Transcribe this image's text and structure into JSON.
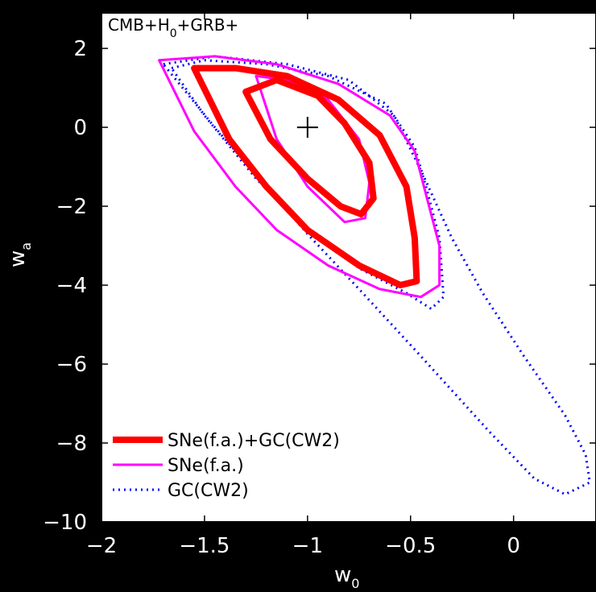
{
  "chart_data": {
    "type": "line",
    "title": "",
    "annotation": {
      "text_main": "CMB+H",
      "text_sub": "0",
      "text_tail": "+GRB+"
    },
    "xlabel": {
      "main": "w",
      "sub": "0"
    },
    "ylabel": {
      "main": "w",
      "sub": "a"
    },
    "xlim": [
      -2,
      0.4
    ],
    "ylim": [
      -10,
      2.9
    ],
    "xticks": [
      -2,
      -1.5,
      -1,
      -0.5,
      0
    ],
    "xtick_labels": [
      "−2",
      "−1.5",
      "−1",
      "−0.5",
      "0"
    ],
    "yticks": [
      2,
      0,
      -2,
      -4,
      -6,
      -8,
      -10
    ],
    "ytick_labels": [
      "2",
      "0",
      "−2",
      "−4",
      "−6",
      "−8",
      "−10"
    ],
    "grid": false,
    "legend_position": "bottom-left",
    "marker": {
      "x": -1,
      "y": 0,
      "symbol": "+"
    },
    "colors": {
      "red": "#ff0000",
      "magenta": "#ff00ff",
      "blue": "#0000ff"
    },
    "series": [
      {
        "name": "GC(CW2)",
        "style": "dotted",
        "color": "#0000ff",
        "contours": [
          {
            "level": "inner",
            "x": [
              -1.66,
              -1.5,
              -1.2,
              -0.9,
              -0.62,
              -0.48,
              -0.42,
              -0.36,
              -0.34,
              -0.4,
              -0.52,
              -0.74,
              -1.0,
              -1.25,
              -1.5,
              -1.66
            ],
            "y": [
              1.5,
              1.7,
              1.6,
              1.3,
              0.6,
              -0.5,
              -1.6,
              -2.8,
              -4.3,
              -4.6,
              -4.2,
              -3.6,
              -2.6,
              -1.3,
              0.3,
              1.5
            ]
          },
          {
            "level": "outer",
            "x": [
              -1.7,
              -1.45,
              -1.1,
              -0.8,
              -0.58,
              -0.44,
              -0.3,
              -0.15,
              0.05,
              0.25,
              0.35,
              0.37,
              0.25,
              0.1,
              -0.12,
              -0.45,
              -0.75,
              -1.0,
              -1.2,
              -1.45,
              -1.7
            ],
            "y": [
              1.6,
              1.8,
              1.6,
              1.2,
              0.3,
              -1.2,
              -2.8,
              -4.2,
              -5.8,
              -7.3,
              -8.3,
              -9.0,
              -9.3,
              -8.9,
              -7.7,
              -5.8,
              -4.1,
              -2.7,
              -1.5,
              0.0,
              1.6
            ]
          }
        ]
      },
      {
        "name": "SNe(f.a.)",
        "style": "solid",
        "color": "#ff00ff",
        "contours": [
          {
            "level": "inner",
            "x": [
              -1.25,
              -1.1,
              -0.9,
              -0.75,
              -0.7,
              -0.72,
              -0.82,
              -1.0,
              -1.15,
              -1.25
            ],
            "y": [
              1.3,
              1.2,
              0.7,
              -0.3,
              -1.4,
              -2.3,
              -2.4,
              -1.5,
              -0.3,
              1.3
            ]
          },
          {
            "level": "outer",
            "x": [
              -1.72,
              -1.45,
              -1.15,
              -0.85,
              -0.6,
              -0.48,
              -0.42,
              -0.36,
              -0.36,
              -0.45,
              -0.65,
              -0.9,
              -1.15,
              -1.35,
              -1.55,
              -1.72
            ],
            "y": [
              1.7,
              1.8,
              1.6,
              1.1,
              0.3,
              -0.6,
              -1.8,
              -3.0,
              -4.0,
              -4.3,
              -4.1,
              -3.5,
              -2.6,
              -1.5,
              -0.1,
              1.7
            ]
          }
        ]
      },
      {
        "name": "SNe(f.a.)+GC(CW2)",
        "style": "solid-thick",
        "color": "#ff0000",
        "contours": [
          {
            "level": "inner",
            "x": [
              -1.3,
              -1.15,
              -0.95,
              -0.82,
              -0.7,
              -0.68,
              -0.74,
              -0.84,
              -1.0,
              -1.18,
              -1.3
            ],
            "y": [
              0.9,
              1.2,
              0.8,
              0.1,
              -0.9,
              -1.8,
              -2.2,
              -2.0,
              -1.3,
              -0.3,
              0.9
            ]
          },
          {
            "level": "outer",
            "x": [
              -1.55,
              -1.35,
              -1.1,
              -0.85,
              -0.65,
              -0.52,
              -0.48,
              -0.47,
              -0.55,
              -0.75,
              -1.0,
              -1.2,
              -1.38,
              -1.55
            ],
            "y": [
              1.5,
              1.5,
              1.3,
              0.7,
              -0.2,
              -1.5,
              -2.8,
              -3.9,
              -4.0,
              -3.5,
              -2.6,
              -1.5,
              -0.3,
              1.5
            ]
          }
        ]
      }
    ],
    "legend": [
      {
        "label": "SNe(f.a.)+GC(CW2)",
        "series": "SNe(f.a.)+GC(CW2)"
      },
      {
        "label": "SNe(f.a.)",
        "series": "SNe(f.a.)"
      },
      {
        "label": "GC(CW2)",
        "series": "GC(CW2)"
      }
    ]
  }
}
